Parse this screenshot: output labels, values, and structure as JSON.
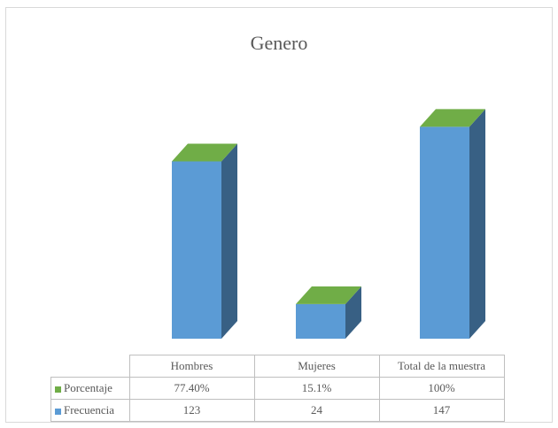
{
  "chart_data": {
    "type": "bar",
    "title": "Genero",
    "categories": [
      "Hombres",
      "Mujeres",
      "Total de la muestra"
    ],
    "series": [
      {
        "name": "Porcentaje",
        "values": [
          0.774,
          0.151,
          1.0
        ],
        "labels": [
          "77.40%",
          "15.1%",
          "100%"
        ],
        "color": "#70ad47"
      },
      {
        "name": "Frecuencia",
        "values": [
          123,
          24,
          147
        ],
        "labels": [
          "123",
          "24",
          "147"
        ],
        "color": "#5b9bd5"
      }
    ],
    "xlabel": "",
    "ylabel": "",
    "ylim": [
      0,
      160
    ],
    "grid": false,
    "legend": "data-table"
  }
}
